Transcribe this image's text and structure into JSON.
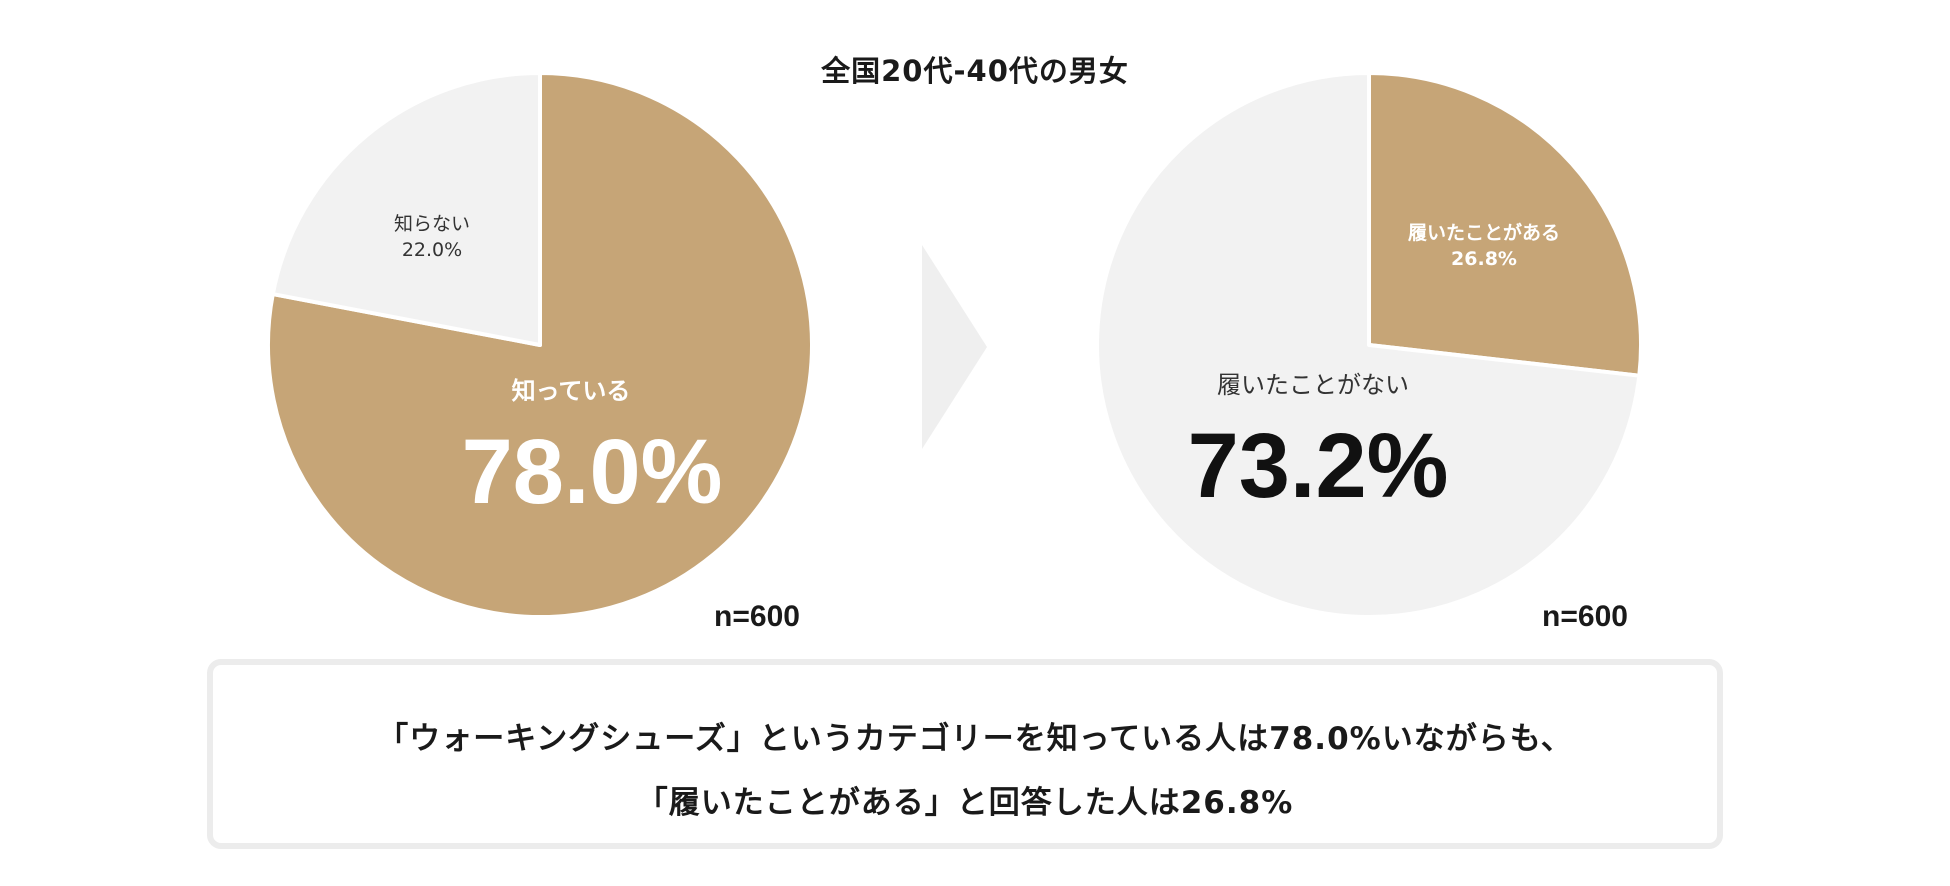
{
  "title": "全国20代-40代の男女",
  "colors": {
    "accent": "#c6a577",
    "light": "#f2f2f2",
    "arrow": "#efefef",
    "dark": "#111111",
    "white": "#ffffff"
  },
  "chart_data": [
    {
      "type": "pie",
      "title": "",
      "sample_size": "n=600",
      "slices": [
        {
          "label": "知っている",
          "value": 78.0,
          "value_label": "78.0%",
          "color": "#c6a577"
        },
        {
          "label": "知らない",
          "value": 22.0,
          "value_label": "22.0%",
          "color": "#f2f2f2"
        }
      ]
    },
    {
      "type": "pie",
      "title": "",
      "sample_size": "n=600",
      "slices": [
        {
          "label": "履いたことがある",
          "value": 26.8,
          "value_label": "26.8%",
          "color": "#c6a577"
        },
        {
          "label": "履いたことがない",
          "value": 73.2,
          "value_label": "73.2%",
          "color": "#f2f2f2"
        }
      ]
    }
  ],
  "summary": {
    "line1": "「ウォーキングシューズ」というカテゴリーを知っている人は78.0%いながらも、",
    "line2": "「履いたことがある」と回答した人は26.8%"
  }
}
